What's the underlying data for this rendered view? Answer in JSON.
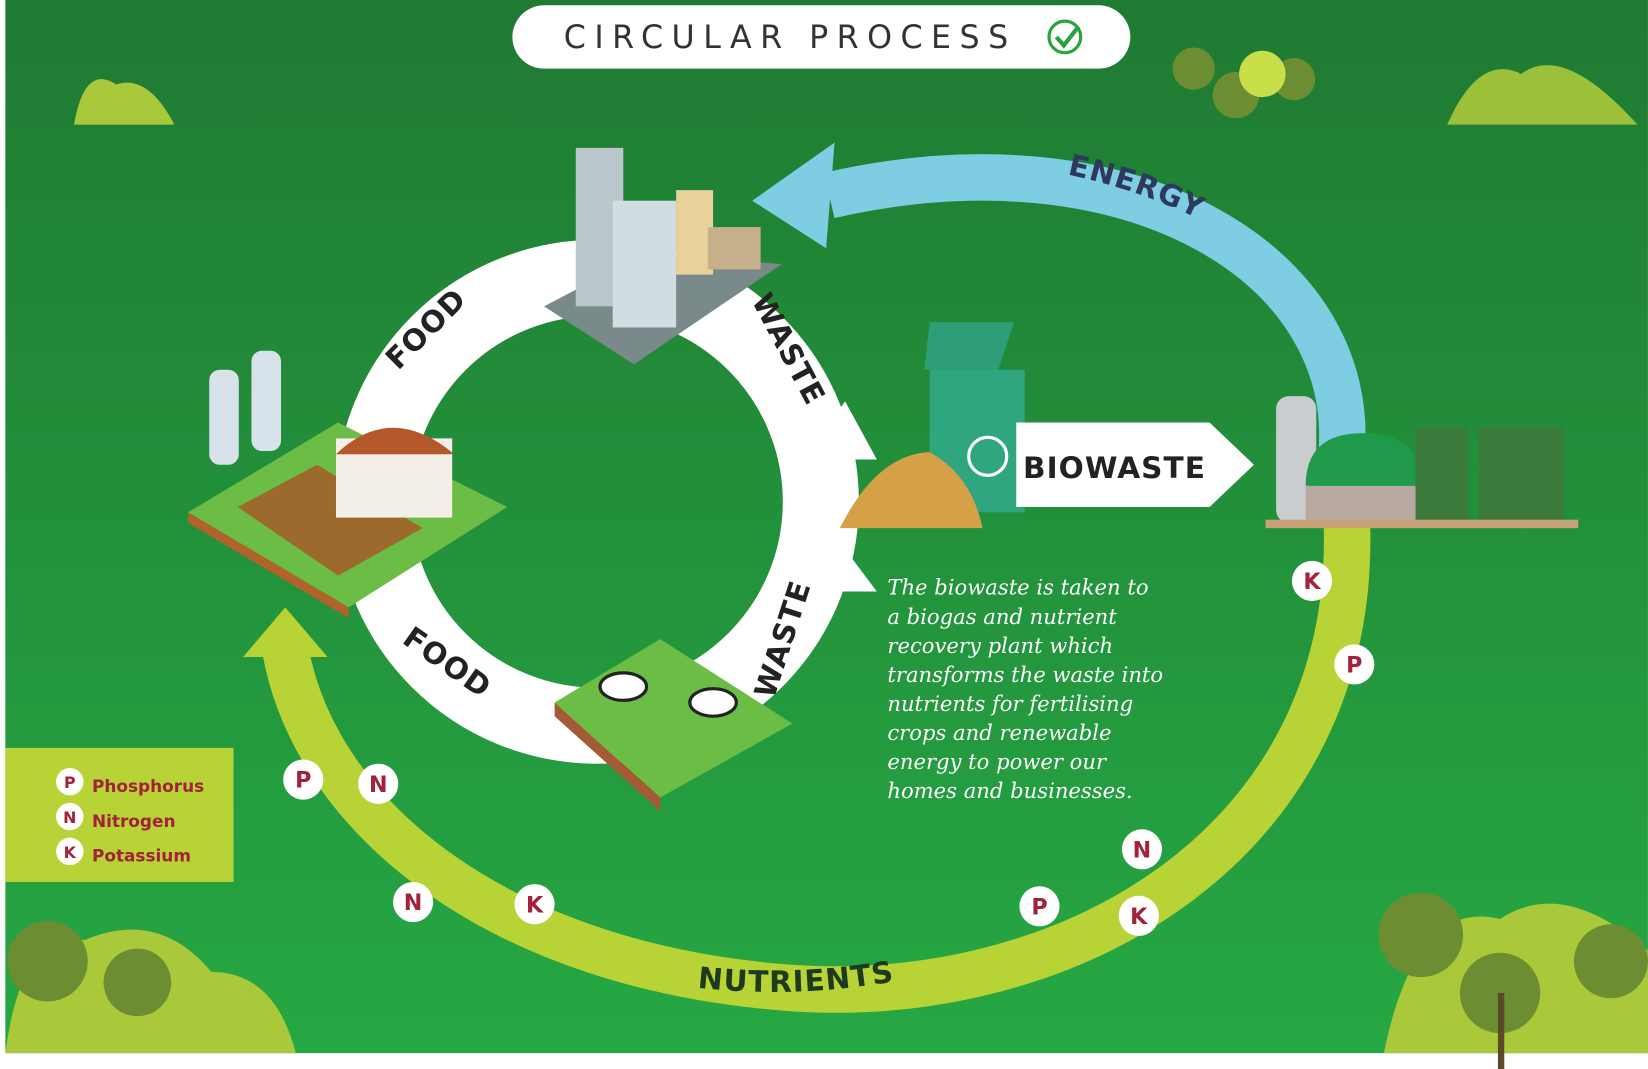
{
  "header": {
    "title": "CIRCULAR PROCESS"
  },
  "cycle": {
    "food_top": "FOOD",
    "waste_top": "WASTE",
    "food_bottom": "FOOD",
    "waste_bottom": "WASTE"
  },
  "flows": {
    "biowaste": "BIOWASTE",
    "energy": "ENERGY",
    "nutrients": "NUTRIENTS"
  },
  "description": [
    "The biowaste is taken to",
    "a biogas and nutrient",
    "recovery plant which",
    "transforms the waste into",
    "nutrients for fertilising",
    "crops and renewable",
    "energy to power our",
    "homes and businesses."
  ],
  "nutrient_badges": [
    "K",
    "P",
    "P",
    "N",
    "N",
    "K",
    "N",
    "P",
    "K"
  ],
  "legend": [
    {
      "letter": "P",
      "name": "Phosphorus"
    },
    {
      "letter": "N",
      "name": "Nitrogen"
    },
    {
      "letter": "K",
      "name": "Potassium"
    }
  ]
}
